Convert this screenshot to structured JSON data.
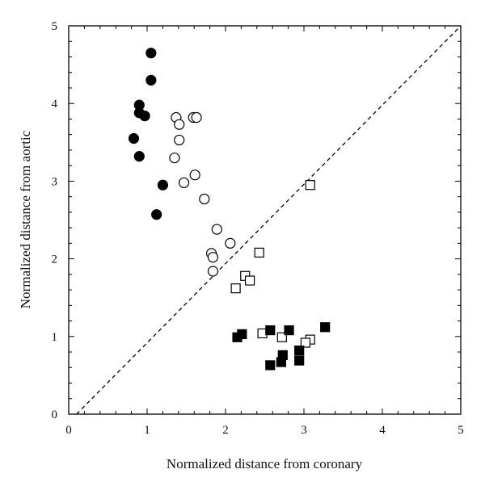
{
  "chart_data": {
    "type": "scatter",
    "title": "",
    "xlabel": "Normalized distance from coronary",
    "ylabel": "Normalized distance from aortic",
    "xlim": [
      0,
      5
    ],
    "ylim": [
      0,
      5
    ],
    "xticks": [
      "0",
      "1",
      "2",
      "3",
      "4",
      "5"
    ],
    "yticks": [
      "0",
      "1",
      "2",
      "3",
      "4",
      "5"
    ],
    "grid": false,
    "legend": "none",
    "reference_line": {
      "style": "dashed",
      "x": [
        0.1,
        5
      ],
      "y": [
        0,
        5
      ]
    },
    "series": [
      {
        "marker": "filled-circle",
        "color": "#000000",
        "points": [
          [
            1.05,
            4.65
          ],
          [
            1.05,
            4.3
          ],
          [
            0.9,
            3.98
          ],
          [
            0.9,
            3.88
          ],
          [
            0.97,
            3.84
          ],
          [
            0.83,
            3.55
          ],
          [
            0.9,
            3.32
          ],
          [
            1.2,
            2.95
          ],
          [
            1.12,
            2.57
          ]
        ]
      },
      {
        "marker": "open-circle",
        "color": "#000000",
        "points": [
          [
            1.37,
            3.82
          ],
          [
            1.59,
            3.82
          ],
          [
            1.63,
            3.82
          ],
          [
            1.41,
            3.73
          ],
          [
            1.41,
            3.53
          ],
          [
            1.35,
            3.3
          ],
          [
            1.61,
            3.08
          ],
          [
            1.47,
            2.98
          ],
          [
            1.73,
            2.77
          ],
          [
            1.89,
            2.38
          ],
          [
            2.06,
            2.2
          ],
          [
            1.82,
            2.07
          ],
          [
            1.84,
            2.02
          ],
          [
            1.84,
            1.84
          ]
        ]
      },
      {
        "marker": "open-square",
        "color": "#000000",
        "points": [
          [
            3.08,
            2.95
          ],
          [
            2.43,
            2.08
          ],
          [
            2.25,
            1.78
          ],
          [
            2.31,
            1.72
          ],
          [
            2.13,
            1.62
          ],
          [
            2.47,
            1.04
          ],
          [
            2.72,
            0.99
          ],
          [
            3.08,
            0.96
          ],
          [
            3.02,
            0.92
          ]
        ]
      },
      {
        "marker": "filled-square",
        "color": "#000000",
        "points": [
          [
            2.15,
            0.99
          ],
          [
            2.21,
            1.03
          ],
          [
            2.57,
            1.08
          ],
          [
            2.81,
            1.08
          ],
          [
            3.27,
            1.12
          ],
          [
            2.94,
            0.82
          ],
          [
            2.73,
            0.76
          ],
          [
            2.71,
            0.67
          ],
          [
            2.94,
            0.69
          ],
          [
            2.57,
            0.63
          ]
        ]
      }
    ]
  }
}
